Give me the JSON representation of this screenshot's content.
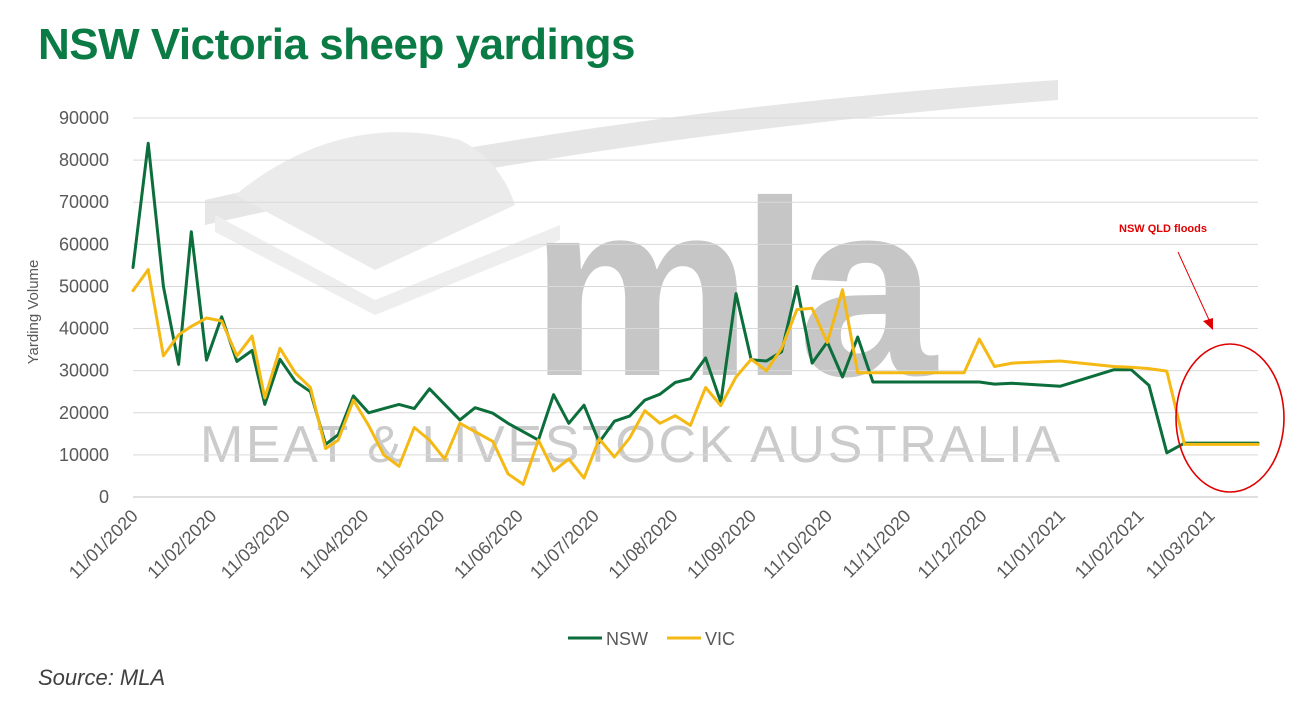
{
  "title": "NSW Victoria sheep yardings",
  "source": "Source: MLA",
  "watermark": "MEAT & LIVESTOCK AUSTRALIA",
  "colors": {
    "title": "#0b7b45",
    "nsw": "#0b6e3b",
    "vic": "#f5b915",
    "annotation": "#e00000",
    "grid": "#d9d9d9",
    "watermark": "#c9c9c9"
  },
  "chart_data": {
    "type": "line",
    "title": "NSW Victoria sheep yardings",
    "ylabel": "Yarding Volume",
    "xlabel": "",
    "ylim": [
      0,
      90000
    ],
    "yticks": [
      "0",
      "10000",
      "20000",
      "30000",
      "40000",
      "50000",
      "60000",
      "70000",
      "80000",
      "90000"
    ],
    "xticks": [
      "11/01/2020",
      "11/02/2020",
      "11/03/2020",
      "11/04/2020",
      "11/05/2020",
      "11/06/2020",
      "11/07/2020",
      "11/08/2020",
      "11/09/2020",
      "11/10/2020",
      "11/11/2020",
      "11/12/2020",
      "11/01/2021",
      "11/02/2021",
      "11/03/2021"
    ],
    "x_start": "11/01/2020",
    "x_end": "30/03/2021",
    "grid": true,
    "legend": "bottom",
    "series": [
      {
        "name": "NSW",
        "x": [
          "11/01/2020",
          "17/01/2020",
          "23/01/2020",
          "29/01/2020",
          "03/02/2020",
          "09/02/2020",
          "15/02/2020",
          "21/02/2020",
          "27/02/2020",
          "03/03/2020",
          "09/03/2020",
          "15/03/2020",
          "21/03/2020",
          "27/03/2020",
          "01/04/2020",
          "07/04/2020",
          "13/04/2020",
          "19/04/2020",
          "25/04/2020",
          "01/05/2020",
          "07/05/2020",
          "13/05/2020",
          "19/05/2020",
          "25/05/2020",
          "01/06/2020",
          "07/06/2020",
          "13/06/2020",
          "19/06/2020",
          "25/06/2020",
          "01/07/2020",
          "07/07/2020",
          "13/07/2020",
          "19/07/2020",
          "25/07/2020",
          "31/07/2020",
          "06/08/2020",
          "12/08/2020",
          "18/08/2020",
          "24/08/2020",
          "30/08/2020",
          "05/09/2020",
          "11/09/2020",
          "17/09/2020",
          "23/09/2020",
          "29/09/2020",
          "05/10/2020",
          "11/10/2020",
          "17/10/2020",
          "23/10/2020",
          "29/10/2020",
          "04/11/2020",
          "10/11/2020",
          "16/11/2020",
          "22/11/2020",
          "28/11/2020",
          "04/12/2020",
          "10/12/2020",
          "16/12/2020",
          "23/12/2020",
          "11/01/2021",
          "01/02/2021",
          "08/02/2021",
          "15/02/2021",
          "22/02/2021",
          "01/03/2021",
          "08/03/2021",
          "15/03/2021",
          "22/03/2021",
          "30/03/2021"
        ],
        "values": [
          54500,
          84000,
          50000,
          31500,
          63000,
          32500,
          42800,
          32200,
          34800,
          22000,
          32700,
          27500,
          25000,
          12500,
          14800,
          24000,
          20000,
          21000,
          22000,
          21000,
          25700,
          22000,
          18300,
          21200,
          19900,
          17500,
          15500,
          13500,
          24300,
          17500,
          21800,
          13000,
          18000,
          19200,
          23000,
          24400,
          27200,
          28100,
          33000,
          22500,
          48300,
          32600,
          32300,
          34500,
          50000,
          31800,
          36800,
          28500,
          38000,
          27300,
          27300,
          27300,
          27300,
          27300,
          27300,
          27300,
          27300,
          26800,
          27000,
          26300,
          30200,
          30200,
          26500,
          10500,
          12800,
          12800,
          12800,
          12800,
          12800
        ]
      },
      {
        "name": "VIC",
        "x": [
          "11/01/2020",
          "17/01/2020",
          "23/01/2020",
          "29/01/2020",
          "03/02/2020",
          "09/02/2020",
          "15/02/2020",
          "21/02/2020",
          "27/02/2020",
          "03/03/2020",
          "09/03/2020",
          "15/03/2020",
          "21/03/2020",
          "27/03/2020",
          "01/04/2020",
          "07/04/2020",
          "13/04/2020",
          "19/04/2020",
          "25/04/2020",
          "01/05/2020",
          "07/05/2020",
          "13/05/2020",
          "19/05/2020",
          "25/05/2020",
          "01/06/2020",
          "07/06/2020",
          "13/06/2020",
          "19/06/2020",
          "25/06/2020",
          "01/07/2020",
          "07/07/2020",
          "13/07/2020",
          "19/07/2020",
          "25/07/2020",
          "31/07/2020",
          "06/08/2020",
          "12/08/2020",
          "18/08/2020",
          "24/08/2020",
          "30/08/2020",
          "05/09/2020",
          "11/09/2020",
          "17/09/2020",
          "23/09/2020",
          "29/09/2020",
          "05/10/2020",
          "11/10/2020",
          "17/10/2020",
          "23/10/2020",
          "29/10/2020",
          "04/11/2020",
          "10/11/2020",
          "16/11/2020",
          "22/11/2020",
          "28/11/2020",
          "04/12/2020",
          "10/12/2020",
          "16/12/2020",
          "23/12/2020",
          "11/01/2021",
          "01/02/2021",
          "08/02/2021",
          "15/02/2021",
          "22/02/2021",
          "01/03/2021",
          "08/03/2021",
          "15/03/2021",
          "22/03/2021",
          "30/03/2021"
        ],
        "values": [
          49000,
          54000,
          33500,
          38500,
          40500,
          42500,
          41800,
          33500,
          38200,
          23500,
          35300,
          29500,
          26000,
          11500,
          13500,
          23000,
          17000,
          10000,
          7300,
          16500,
          13500,
          9000,
          17500,
          15500,
          13200,
          5500,
          3000,
          13500,
          6200,
          9000,
          4500,
          13800,
          9500,
          14000,
          20500,
          17500,
          19300,
          17000,
          26000,
          21700,
          28500,
          32700,
          30000,
          35300,
          44500,
          44800,
          36700,
          49200,
          29500,
          29500,
          29500,
          29500,
          29500,
          29500,
          29500,
          29500,
          37500,
          31000,
          31800,
          32300,
          31000,
          30800,
          30500,
          29900,
          12500,
          12500,
          12500,
          12500,
          12500
        ]
      }
    ],
    "annotations": [
      {
        "text": "NSW QLD floods"
      }
    ]
  }
}
